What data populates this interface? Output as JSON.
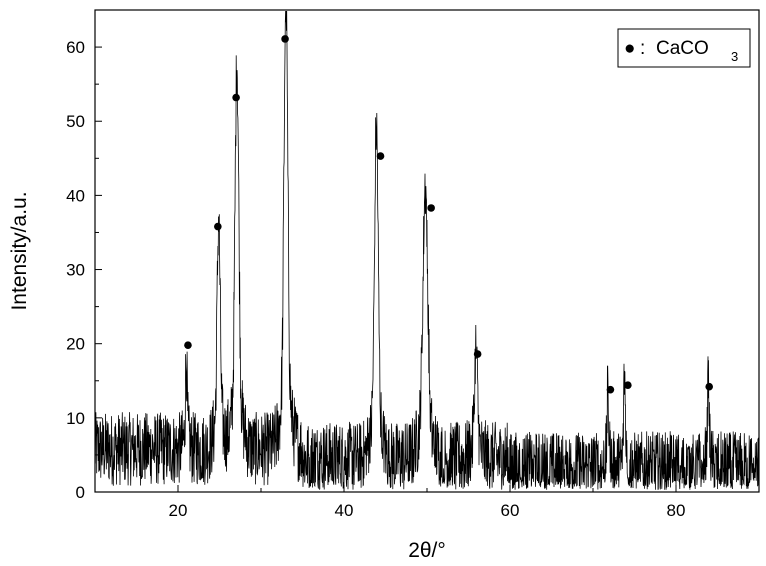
{
  "chart_data": {
    "type": "line",
    "title": "",
    "xlabel": "2θ/°",
    "ylabel": "Intensity/a.u.",
    "xlim": [
      10,
      90
    ],
    "ylim": [
      0,
      65
    ],
    "xticks": [
      20,
      40,
      60,
      80
    ],
    "yticks": [
      0,
      10,
      20,
      30,
      40,
      50,
      60
    ],
    "grid": false,
    "legend": {
      "placement": "top-right",
      "marker": "●",
      "separator": ":",
      "label_main": "CaCO",
      "label_subscript": "3"
    },
    "noise": {
      "baseline": 5,
      "amplitude": 5,
      "description_free": true
    },
    "series": [
      {
        "style": "noisy-line",
        "peaks_x": [
          21.0,
          24.9,
          27.1,
          33.0,
          43.9,
          49.8,
          55.9,
          71.8,
          73.8,
          83.9
        ],
        "peaks_y": [
          16,
          33,
          52,
          60,
          44,
          37,
          17,
          12,
          14,
          13
        ]
      },
      {
        "style": "marker",
        "marker": "●",
        "x": [
          21.2,
          24.8,
          27.0,
          32.9,
          44.4,
          50.5,
          56.1,
          72.1,
          74.2,
          84.0
        ],
        "y": [
          19.8,
          35.8,
          53.2,
          61.1,
          45.3,
          38.3,
          18.6,
          13.8,
          14.4,
          14.2
        ]
      }
    ]
  }
}
